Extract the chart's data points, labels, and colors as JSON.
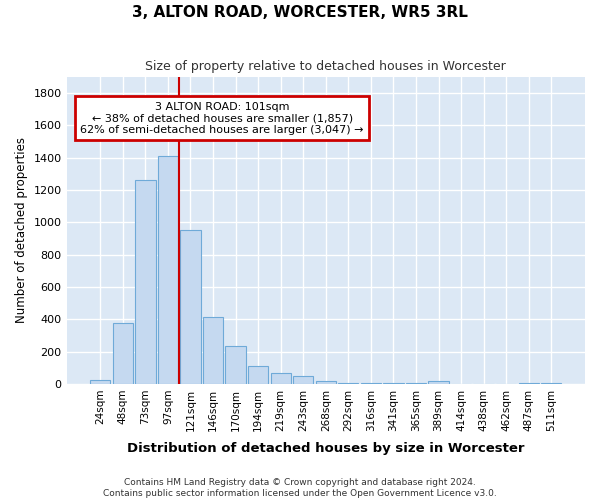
{
  "title": "3, ALTON ROAD, WORCESTER, WR5 3RL",
  "subtitle": "Size of property relative to detached houses in Worcester",
  "xlabel": "Distribution of detached houses by size in Worcester",
  "ylabel": "Number of detached properties",
  "bar_color": "#c5d9f0",
  "bar_edge_color": "#6faad8",
  "plot_bg_color": "#dce8f5",
  "fig_bg_color": "#ffffff",
  "grid_color": "#ffffff",
  "annotation_text": "3 ALTON ROAD: 101sqm\n← 38% of detached houses are smaller (1,857)\n62% of semi-detached houses are larger (3,047) →",
  "annotation_box_color": "#ffffff",
  "annotation_box_edge_color": "#cc0000",
  "vline_color": "#cc0000",
  "vline_index": 3.5,
  "categories": [
    "24sqm",
    "48sqm",
    "73sqm",
    "97sqm",
    "121sqm",
    "146sqm",
    "170sqm",
    "194sqm",
    "219sqm",
    "243sqm",
    "268sqm",
    "292sqm",
    "316sqm",
    "341sqm",
    "365sqm",
    "389sqm",
    "414sqm",
    "438sqm",
    "462sqm",
    "487sqm",
    "511sqm"
  ],
  "values": [
    25,
    375,
    1260,
    1410,
    950,
    415,
    235,
    110,
    70,
    50,
    15,
    5,
    5,
    5,
    5,
    15,
    0,
    0,
    0,
    5,
    5
  ],
  "ylim": [
    0,
    1900
  ],
  "yticks": [
    0,
    200,
    400,
    600,
    800,
    1000,
    1200,
    1400,
    1600,
    1800
  ],
  "footnote": "Contains HM Land Registry data © Crown copyright and database right 2024.\nContains public sector information licensed under the Open Government Licence v3.0."
}
